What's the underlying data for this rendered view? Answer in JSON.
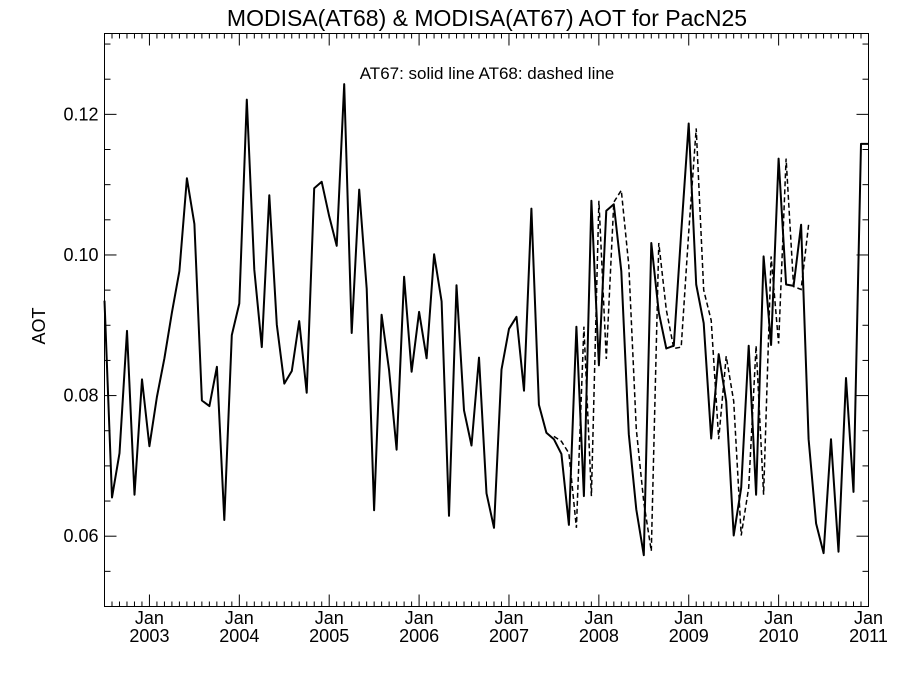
{
  "chart_data": {
    "type": "line",
    "title": "MODISA(AT68) & MODISA(AT67)  AOT for PacN25",
    "annotation": "AT67: solid line   AT68: dashed line",
    "ylabel": "AOT",
    "xlabel": "",
    "ylim": [
      0.05,
      0.1315
    ],
    "xlim": [
      "2002-07",
      "2011-01"
    ],
    "grid": false,
    "y_ticks": [
      "0.06",
      "0.08",
      "0.10",
      "0.12"
    ],
    "x_ticks": [
      {
        "month": "Jan",
        "year": "2003"
      },
      {
        "month": "Jan",
        "year": "2004"
      },
      {
        "month": "Jan",
        "year": "2005"
      },
      {
        "month": "Jan",
        "year": "2006"
      },
      {
        "month": "Jan",
        "year": "2007"
      },
      {
        "month": "Jan",
        "year": "2008"
      },
      {
        "month": "Jan",
        "year": "2009"
      },
      {
        "month": "Jan",
        "year": "2010"
      },
      {
        "month": "Jan",
        "year": "2011"
      }
    ],
    "series": [
      {
        "style": "solid",
        "x": [
          "2002-07",
          "2002-08",
          "2002-09",
          "2002-10",
          "2002-11",
          "2002-12",
          "2003-01",
          "2003-02",
          "2003-03",
          "2003-04",
          "2003-05",
          "2003-06",
          "2003-07",
          "2003-08",
          "2003-09",
          "2003-10",
          "2003-11",
          "2003-12",
          "2004-01",
          "2004-02",
          "2004-03",
          "2004-04",
          "2004-05",
          "2004-06",
          "2004-07",
          "2004-08",
          "2004-09",
          "2004-10",
          "2004-11",
          "2004-12",
          "2005-01",
          "2005-02",
          "2005-03",
          "2005-04",
          "2005-05",
          "2005-06",
          "2005-07",
          "2005-08",
          "2005-09",
          "2005-10",
          "2005-11",
          "2005-12",
          "2006-01",
          "2006-02",
          "2006-03",
          "2006-04",
          "2006-05",
          "2006-06",
          "2006-07",
          "2006-08",
          "2006-09",
          "2006-10",
          "2006-11",
          "2006-12",
          "2007-01",
          "2007-02",
          "2007-03",
          "2007-04",
          "2007-05",
          "2007-06",
          "2007-07",
          "2007-08",
          "2007-09",
          "2007-10",
          "2007-11",
          "2007-12",
          "2008-01",
          "2008-02",
          "2008-03",
          "2008-04",
          "2008-05",
          "2008-06",
          "2008-07",
          "2008-08",
          "2008-09",
          "2008-10",
          "2008-11",
          "2008-12",
          "2009-01",
          "2009-02",
          "2009-03",
          "2009-04",
          "2009-05",
          "2009-06",
          "2009-07",
          "2009-08",
          "2009-09",
          "2009-10",
          "2009-11",
          "2009-12",
          "2010-01",
          "2010-02",
          "2010-03",
          "2010-04",
          "2010-05",
          "2010-06",
          "2010-07",
          "2010-08",
          "2010-09",
          "2010-10",
          "2010-11",
          "2010-12",
          "2011-01"
        ],
        "values": [
          0.0935,
          0.0655,
          0.0718,
          0.0892,
          0.0659,
          0.0823,
          0.0728,
          0.0798,
          0.0853,
          0.0918,
          0.0977,
          0.1109,
          0.1044,
          0.0793,
          0.0785,
          0.0841,
          0.0623,
          0.0886,
          0.0931,
          0.1221,
          0.0979,
          0.0869,
          0.1085,
          0.0901,
          0.0817,
          0.0835,
          0.0906,
          0.0804,
          0.1095,
          0.1104,
          0.1055,
          0.1013,
          0.1243,
          0.0889,
          0.1093,
          0.0952,
          0.0637,
          0.0915,
          0.0836,
          0.0723,
          0.0969,
          0.0834,
          0.0919,
          0.0853,
          0.1001,
          0.0934,
          0.0629,
          0.0957,
          0.0779,
          0.0729,
          0.0854,
          0.0661,
          0.0612,
          0.0837,
          0.0895,
          0.0912,
          0.0807,
          0.1066,
          0.0787,
          0.0747,
          0.0738,
          0.0717,
          0.0616,
          0.0898,
          0.0657,
          0.1077,
          0.0843,
          0.1063,
          0.1072,
          0.0977,
          0.0745,
          0.0638,
          0.0573,
          0.1017,
          0.0918,
          0.0867,
          0.0871,
          0.1032,
          0.1187,
          0.0958,
          0.0903,
          0.0739,
          0.0859,
          0.0792,
          0.0601,
          0.0669,
          0.0871,
          0.0659,
          0.0998,
          0.0872,
          0.1137,
          0.0958,
          0.0956,
          0.1043,
          0.0738,
          0.0618,
          0.0576,
          0.0738,
          0.0578,
          0.0825,
          0.0663,
          0.1158,
          0.1158
        ]
      },
      {
        "style": "dashed",
        "x": [
          "2007-07",
          "2007-08",
          "2007-09",
          "2007-10",
          "2007-11",
          "2007-12",
          "2008-01",
          "2008-02",
          "2008-03",
          "2008-04",
          "2008-05",
          "2008-06",
          "2008-07",
          "2008-08",
          "2008-09",
          "2008-10",
          "2008-11",
          "2008-12",
          "2009-01",
          "2009-02",
          "2009-03",
          "2009-04",
          "2009-05",
          "2009-06",
          "2009-07",
          "2009-08",
          "2009-09",
          "2009-10",
          "2009-11",
          "2009-12",
          "2010-01",
          "2010-02",
          "2010-03",
          "2010-04",
          "2010-05"
        ],
        "values": [
          0.0742,
          0.0735,
          0.0718,
          0.0612,
          0.0898,
          0.0657,
          0.1077,
          0.0852,
          0.1075,
          0.1092,
          0.0985,
          0.0752,
          0.0648,
          0.0579,
          0.1017,
          0.0922,
          0.0867,
          0.0869,
          0.1032,
          0.118,
          0.095,
          0.0907,
          0.0738,
          0.0856,
          0.0792,
          0.0601,
          0.0669,
          0.0871,
          0.0659,
          0.0998,
          0.0874,
          0.1137,
          0.0955,
          0.0951,
          0.1043
        ]
      }
    ]
  }
}
